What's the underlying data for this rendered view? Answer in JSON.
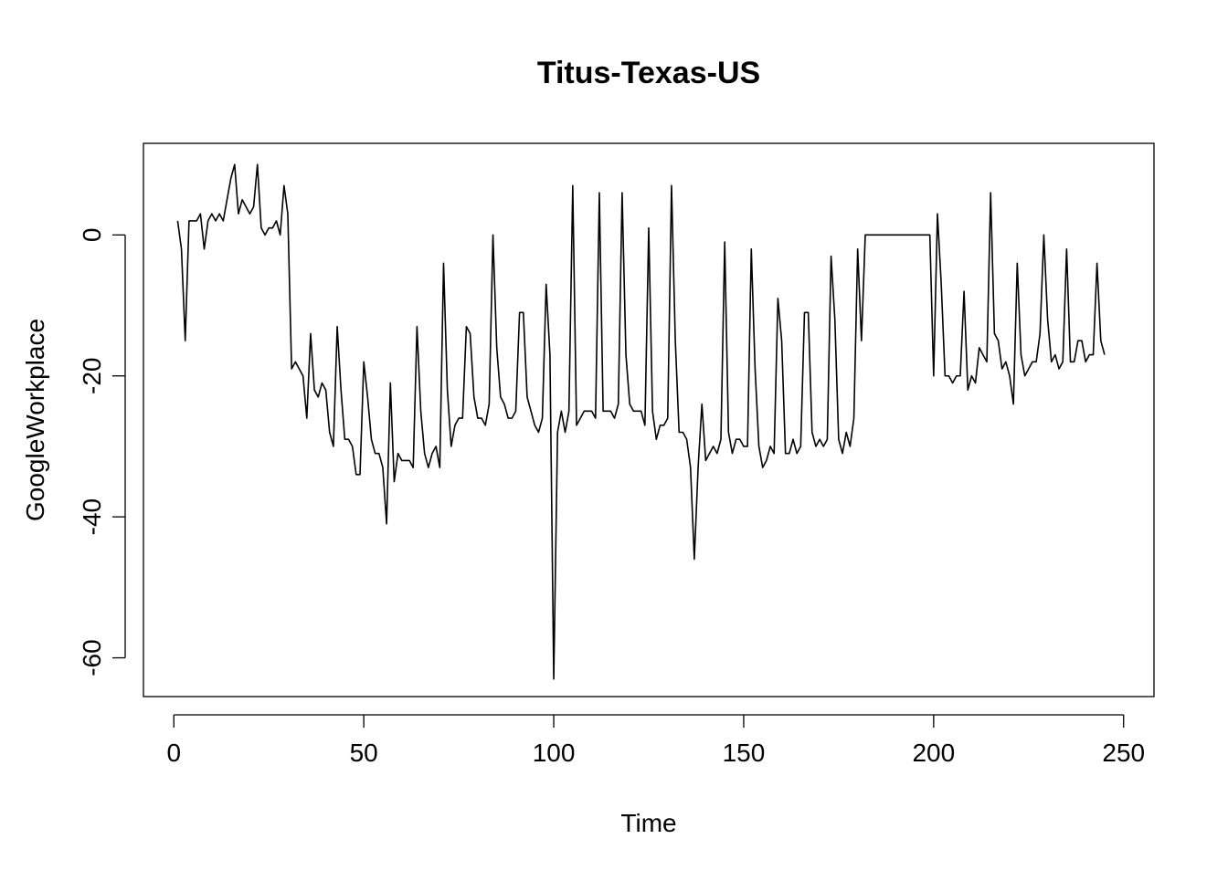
{
  "chart_data": {
    "type": "line",
    "title": "Titus-Texas-US",
    "xlabel": "Time",
    "ylabel": "GoogleWorkplace",
    "xlim": [
      -8,
      258
    ],
    "ylim": [
      -65.5,
      13
    ],
    "xticks": [
      0,
      50,
      100,
      150,
      200,
      250
    ],
    "yticks": [
      0,
      -20,
      -40,
      -60
    ],
    "grid": false,
    "legend": "none",
    "line_color": "#000000",
    "series": [
      {
        "x_start": 1,
        "values": [
          2,
          -2,
          -15,
          2,
          2,
          2,
          3,
          -2,
          2,
          3,
          2,
          3,
          2,
          5,
          8,
          10,
          3,
          5,
          4,
          3,
          4,
          10,
          1,
          0,
          1,
          1,
          2,
          0,
          7,
          3,
          -19,
          -18,
          -19,
          -20,
          -26,
          -14,
          -22,
          -23,
          -21,
          -22,
          -28,
          -30,
          -13,
          -22,
          -29,
          -29,
          -30,
          -34,
          -34,
          -18,
          -23,
          -29,
          -31,
          -31,
          -33,
          -41,
          -21,
          -35,
          -31,
          -32,
          -32,
          -32,
          -33,
          -13,
          -25,
          -31,
          -33,
          -31,
          -30,
          -33,
          -4,
          -22,
          -30,
          -27,
          -26,
          -26,
          -13,
          -14,
          -23,
          -26,
          -26,
          -27,
          -24,
          0,
          -16,
          -23,
          -24,
          -26,
          -26,
          -25,
          -11,
          -11,
          -23,
          -25,
          -27,
          -28,
          -26,
          -7,
          -17,
          -63,
          -28,
          -25,
          -28,
          -25,
          7,
          -27,
          -26,
          -25,
          -25,
          -25,
          -26,
          6,
          -25,
          -25,
          -25,
          -26,
          -24,
          6,
          -17,
          -24,
          -25,
          -25,
          -25,
          -27,
          1,
          -25,
          -29,
          -27,
          -27,
          -26,
          7,
          -15,
          -28,
          -28,
          -29,
          -33,
          -46,
          -33,
          -24,
          -32,
          -31,
          -30,
          -31,
          -29,
          -1,
          -28,
          -31,
          -29,
          -29,
          -30,
          -30,
          -2,
          -19,
          -30,
          -33,
          -32,
          -30,
          -31,
          -9,
          -15,
          -31,
          -31,
          -29,
          -31,
          -30,
          -11,
          -11,
          -28,
          -30,
          -29,
          -30,
          -29,
          -3,
          -12,
          -29,
          -31,
          -28,
          -30,
          -26,
          -2,
          -15,
          0,
          0,
          0,
          0,
          0,
          0,
          0,
          0,
          0,
          0,
          0,
          0,
          0,
          0,
          0,
          0,
          0,
          0,
          -20,
          3,
          -7,
          -20,
          -20,
          -21,
          -20,
          -20,
          -8,
          -22,
          -20,
          -21,
          -16,
          -17,
          -18,
          6,
          -14,
          -15,
          -19,
          -18,
          -20,
          -24,
          -4,
          -17,
          -20,
          -19,
          -18,
          -18,
          -14,
          0,
          -12,
          -18,
          -17,
          -19,
          -18,
          -2,
          -18,
          -18,
          -15,
          -15,
          -18,
          -17,
          -17,
          -4,
          -15,
          -17
        ]
      }
    ]
  }
}
